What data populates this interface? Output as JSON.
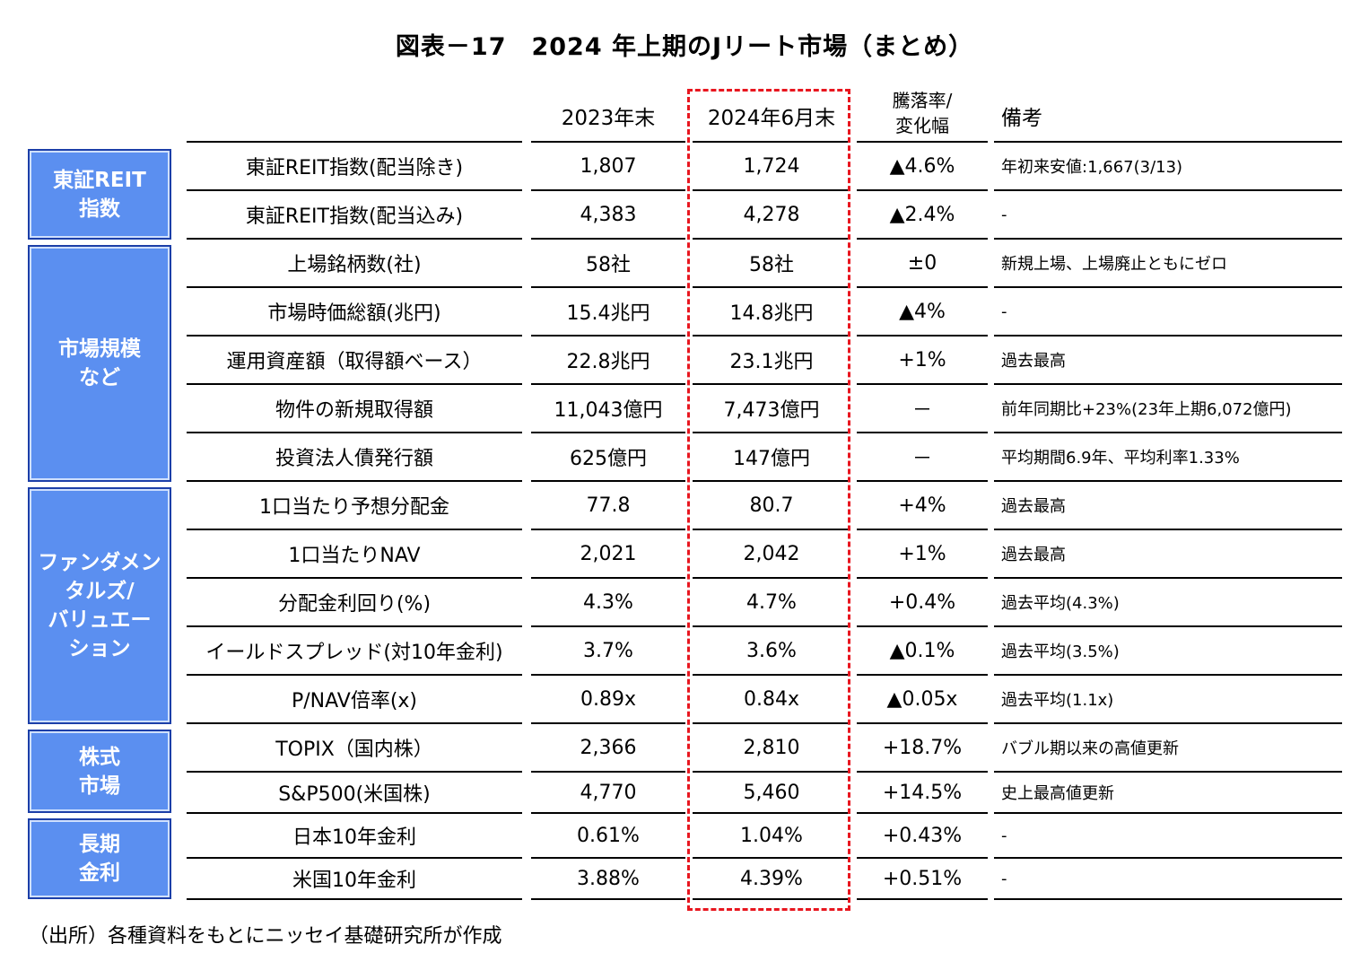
{
  "title": "図表－17　2024 年上期のJリート市場（まとめ）",
  "headers": {
    "col2023": "2023年末",
    "col2024": "2024年6月末",
    "change": "騰落率/\n変化幅",
    "note": "備考"
  },
  "categories": [
    {
      "label": "東証REIT\n指数"
    },
    {
      "label": "市場規模\nなど"
    },
    {
      "label": "ファンダメン\nタルズ/\nバリュエー\nション"
    },
    {
      "label": "株式\n市場"
    },
    {
      "label": "長期\n金利"
    }
  ],
  "rows": [
    {
      "name": "東証REIT指数(配当除き)",
      "v2023": "1,807",
      "v2024": "1,724",
      "change": "▲4.6%",
      "note": "年初来安値:1,667(3/13)"
    },
    {
      "name": "東証REIT指数(配当込み)",
      "v2023": "4,383",
      "v2024": "4,278",
      "change": "▲2.4%",
      "note": "-"
    },
    {
      "name": "上場銘柄数(社)",
      "v2023": "58社",
      "v2024": "58社",
      "change": "±0",
      "note": "新規上場、上場廃止ともにゼロ"
    },
    {
      "name": "市場時価総額(兆円)",
      "v2023": "15.4兆円",
      "v2024": "14.8兆円",
      "change": "▲4%",
      "note": "-"
    },
    {
      "name": "運用資産額（取得額ベース）",
      "v2023": "22.8兆円",
      "v2024": "23.1兆円",
      "change": "+1%",
      "note": "過去最高"
    },
    {
      "name": "物件の新規取得額",
      "v2023": "11,043億円",
      "v2024": "7,473億円",
      "change": "－",
      "note": "前年同期比+23%(23年上期6,072億円)"
    },
    {
      "name": "投資法人債発行額",
      "v2023": "625億円",
      "v2024": "147億円",
      "change": "－",
      "note": "平均期間6.9年、平均利率1.33%"
    },
    {
      "name": "1口当たり予想分配金",
      "v2023": "77.8",
      "v2024": "80.7",
      "change": "+4%",
      "note": "過去最高"
    },
    {
      "name": "1口当たりNAV",
      "v2023": "2,021",
      "v2024": "2,042",
      "change": "+1%",
      "note": "過去最高"
    },
    {
      "name": "分配金利回り(%)",
      "v2023": "4.3%",
      "v2024": "4.7%",
      "change": "+0.4%",
      "note": "過去平均(4.3%)"
    },
    {
      "name": "イールドスプレッド(対10年金利)",
      "v2023": "3.7%",
      "v2024": "3.6%",
      "change": "▲0.1%",
      "note": "過去平均(3.5%)"
    },
    {
      "name": "P/NAV倍率(x)",
      "v2023": "0.89x",
      "v2024": "0.84x",
      "change": "▲0.05x",
      "note": "過去平均(1.1x)"
    },
    {
      "name": "TOPIX（国内株）",
      "v2023": "2,366",
      "v2024": "2,810",
      "change": "+18.7%",
      "note": "バブル期以来の高値更新"
    },
    {
      "name": "S&P500(米国株)",
      "v2023": "4,770",
      "v2024": "5,460",
      "change": "+14.5%",
      "note": "史上最高値更新"
    },
    {
      "name": "日本10年金利",
      "v2023": "0.61%",
      "v2024": "1.04%",
      "change": "+0.43%",
      "note": "-"
    },
    {
      "name": "米国10年金利",
      "v2023": "3.88%",
      "v2024": "4.39%",
      "change": "+0.51%",
      "note": "-"
    }
  ],
  "source": "（出所）各種資料をもとにニッセイ基礎研究所が作成",
  "colors": {
    "category_fill": "#5b8ff0",
    "category_border": "#1c3fa8",
    "highlight_dash": "#e8161f"
  }
}
